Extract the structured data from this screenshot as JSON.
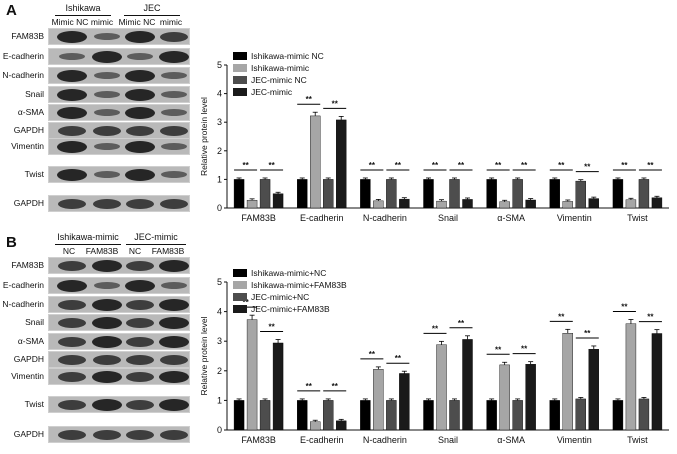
{
  "panel_a": {
    "letter": "A",
    "groups": [
      "Ishikawa",
      "JEC"
    ],
    "lanes": [
      "Mimic NC",
      "mimic",
      "Mimic NC",
      "mimic"
    ],
    "blot_rows": [
      "FAM83B",
      "E-cadherin",
      "N-cadherin",
      "Snail",
      "α-SMA",
      "GAPDH",
      "Vimentin",
      "Twist",
      "GAPDH"
    ]
  },
  "panel_b": {
    "letter": "B",
    "groups": [
      "Ishikawa-mimic",
      "JEC-mimic"
    ],
    "lanes": [
      "NC",
      "FAM83B",
      "NC",
      "FAM83B"
    ],
    "blot_rows": [
      "FAM83B",
      "E-cadherin",
      "N-cadherin",
      "Snail",
      "α-SMA",
      "GAPDH",
      "Vimentin",
      "Twist",
      "GAPDH"
    ]
  },
  "colors": {
    "s1": "#000000",
    "s2": "#a6a6a6",
    "s3": "#4d4d4d",
    "s4": "#1a1a1a"
  },
  "significance": "**",
  "chart_data": [
    {
      "type": "bar",
      "ylabel": "Relative protein level",
      "ylim": [
        0,
        5
      ],
      "yticks": [
        "0",
        "1",
        "2",
        "3",
        "4",
        "5"
      ],
      "legend_position": "top-left",
      "categories": [
        "FAM83B",
        "E-cadherin",
        "N-cadherin",
        "Snail",
        "α-SMA",
        "Vimentin",
        "Twist"
      ],
      "series": [
        {
          "name": "Ishikawa-mimic NC",
          "values": [
            1.0,
            1.0,
            1.0,
            1.0,
            1.0,
            1.0,
            1.0
          ]
        },
        {
          "name": "Ishikawa-mimic",
          "values": [
            0.27,
            3.22,
            0.25,
            0.24,
            0.22,
            0.23,
            0.29
          ]
        },
        {
          "name": "JEC-mimic NC",
          "values": [
            1.0,
            1.0,
            1.0,
            1.0,
            1.0,
            0.94,
            1.0
          ]
        },
        {
          "name": "JEC-mimic",
          "values": [
            0.5,
            3.08,
            0.31,
            0.3,
            0.28,
            0.33,
            0.36
          ]
        }
      ]
    },
    {
      "type": "bar",
      "ylabel": "Relative protein level",
      "ylim": [
        0,
        5
      ],
      "yticks": [
        "0",
        "1",
        "2",
        "3",
        "4",
        "5"
      ],
      "legend_position": "top-left",
      "categories": [
        "FAM83B",
        "E-cadherin",
        "N-cadherin",
        "Snail",
        "α-SMA",
        "Vimentin",
        "Twist"
      ],
      "series": [
        {
          "name": "Ishikawa-mimic+NC",
          "values": [
            1.0,
            1.0,
            1.0,
            1.0,
            1.0,
            1.0,
            1.0
          ]
        },
        {
          "name": "Ishikawa-mimic+FAM83B",
          "values": [
            3.73,
            0.28,
            2.05,
            2.88,
            2.2,
            3.27,
            3.59
          ]
        },
        {
          "name": "JEC-mimic+NC",
          "values": [
            1.0,
            1.0,
            1.0,
            1.0,
            1.0,
            1.05,
            1.05
          ]
        },
        {
          "name": "JEC-mimic+FAM83B",
          "values": [
            2.94,
            0.31,
            1.91,
            3.06,
            2.22,
            2.73,
            3.26
          ]
        }
      ]
    }
  ]
}
